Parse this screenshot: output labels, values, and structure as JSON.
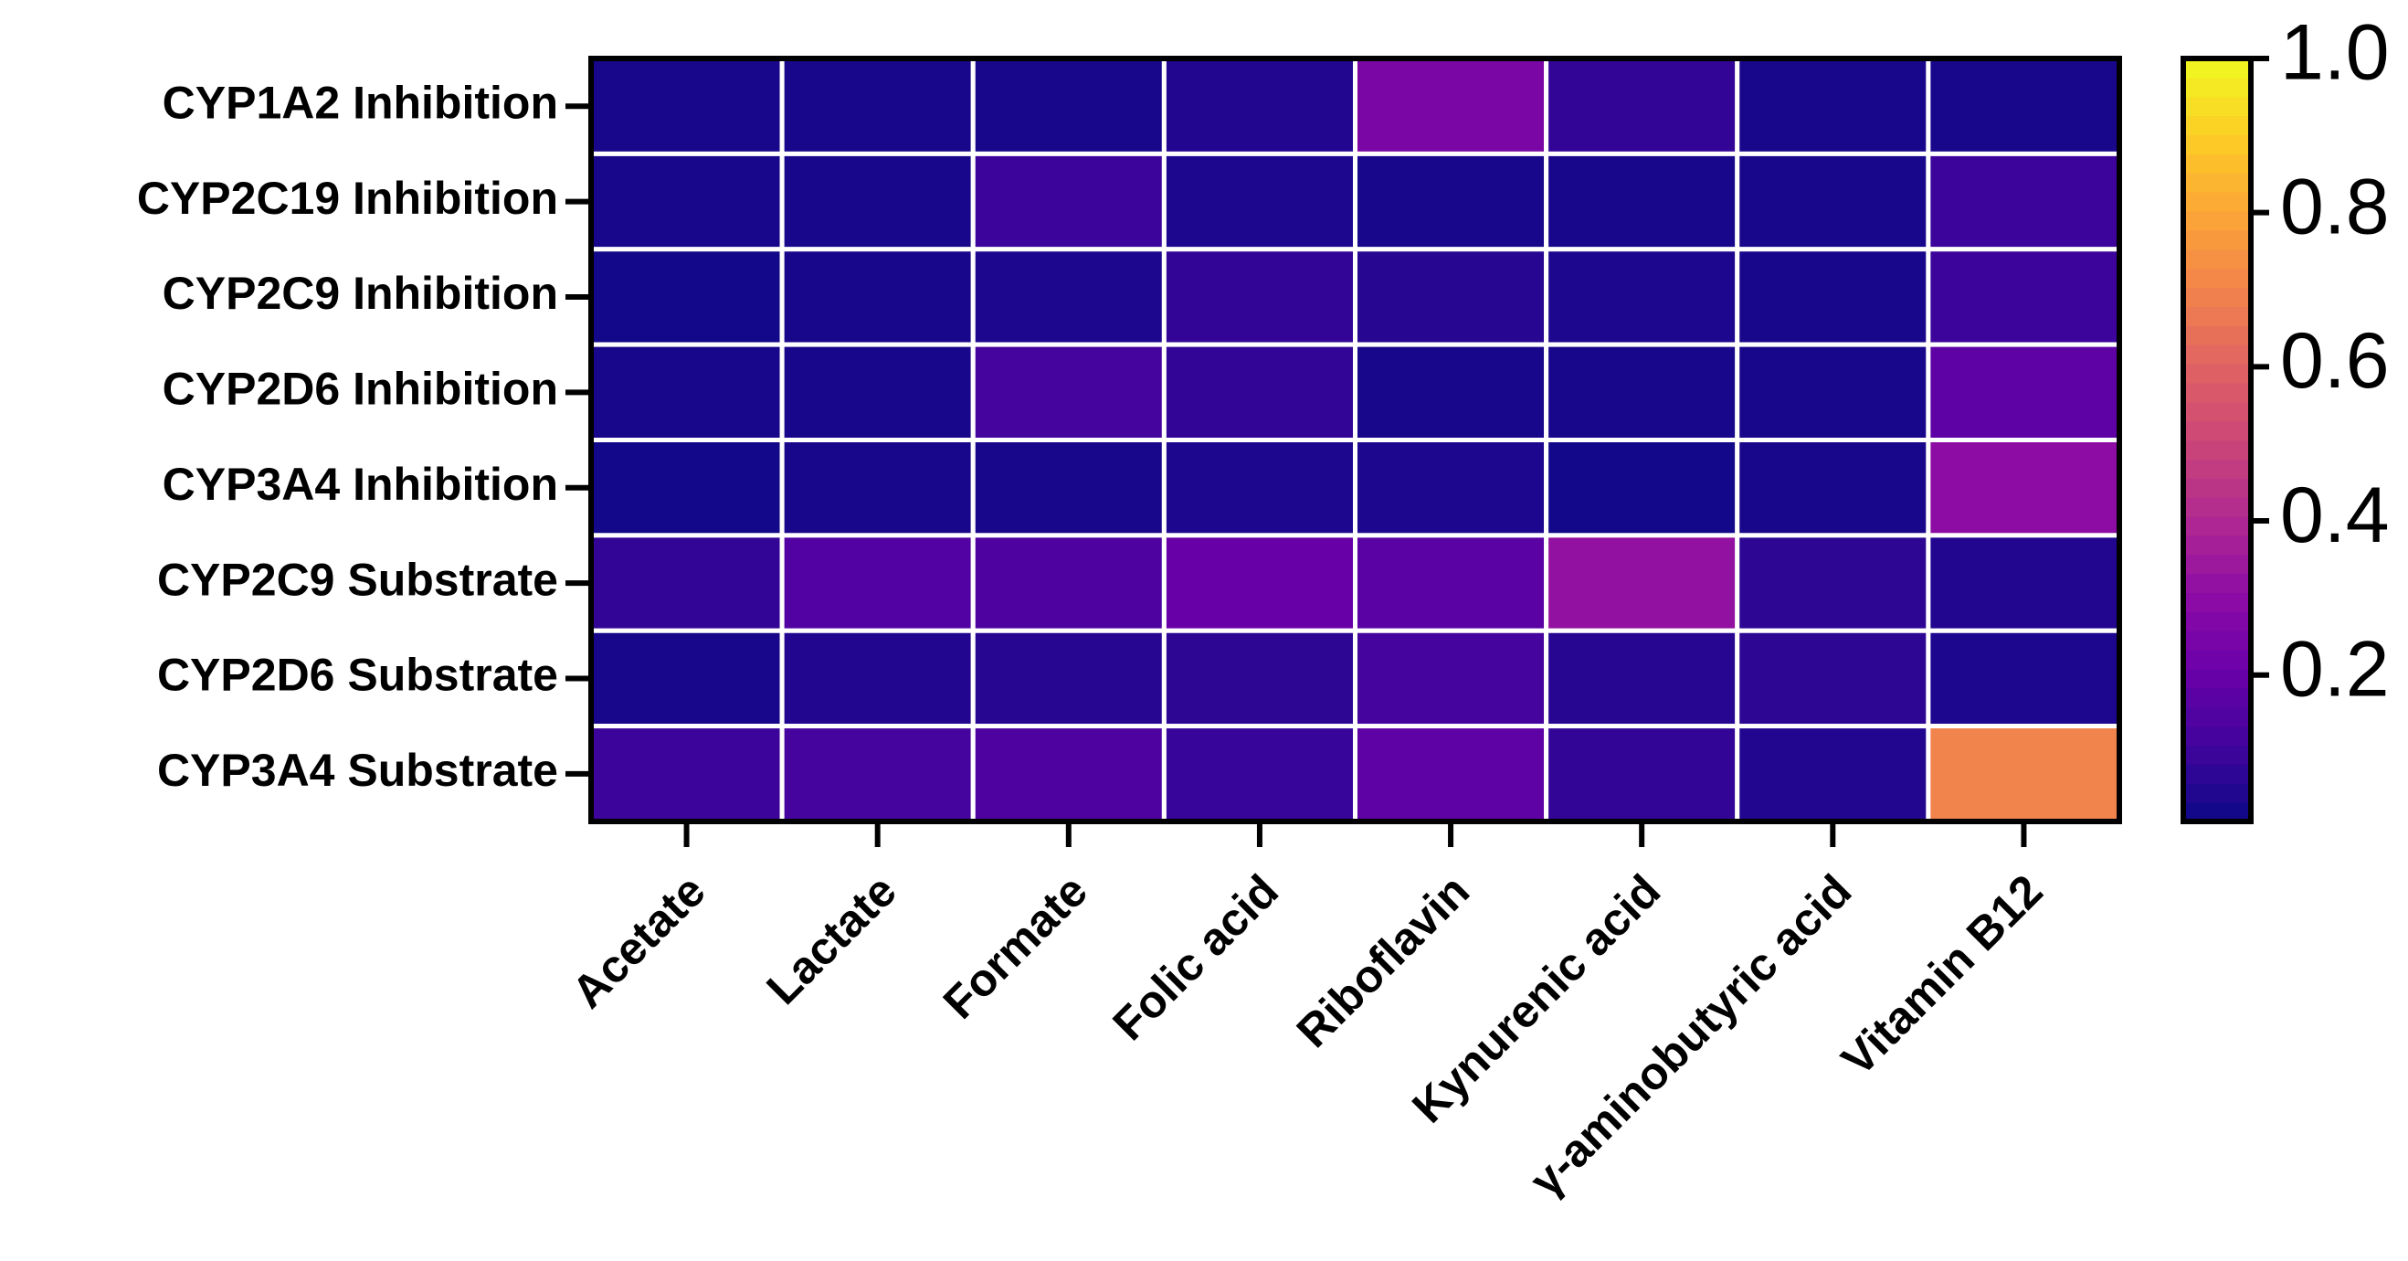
{
  "chart_data": {
    "type": "heatmap",
    "rows": [
      "CYP1A2 Inhibition",
      "CYP2C19 Inhibition",
      "CYP2C9 Inhibition",
      "CYP2D6 Inhibition",
      "CYP3A4 Inhibition",
      "CYP2C9 Substrate",
      "CYP2D6 Substrate",
      "CYP3A4 Substrate"
    ],
    "categories": [
      "Acetate",
      "Lactate",
      "Formate",
      "Folic acid",
      "Riboflavin",
      "Kynurenic acid",
      "γ-aminobutyric acid",
      "Vitamin B12"
    ],
    "values": [
      [
        0.03,
        0.03,
        0.03,
        0.05,
        0.25,
        0.08,
        0.03,
        0.03
      ],
      [
        0.03,
        0.03,
        0.1,
        0.04,
        0.03,
        0.03,
        0.03,
        0.1
      ],
      [
        0.02,
        0.03,
        0.04,
        0.08,
        0.06,
        0.04,
        0.03,
        0.1
      ],
      [
        0.03,
        0.03,
        0.12,
        0.08,
        0.03,
        0.03,
        0.03,
        0.18
      ],
      [
        0.02,
        0.03,
        0.03,
        0.04,
        0.04,
        0.02,
        0.03,
        0.3
      ],
      [
        0.08,
        0.15,
        0.14,
        0.2,
        0.17,
        0.32,
        0.07,
        0.05
      ],
      [
        0.03,
        0.05,
        0.06,
        0.07,
        0.12,
        0.06,
        0.07,
        0.04
      ],
      [
        0.1,
        0.12,
        0.14,
        0.09,
        0.18,
        0.08,
        0.05,
        0.7
      ]
    ],
    "colormap": "plasma",
    "clim": [
      0.01,
      1
    ],
    "cticks": [
      0.2,
      0.4,
      0.6,
      0.8,
      {
        "value": 1,
        "label": "1.0"
      }
    ]
  }
}
